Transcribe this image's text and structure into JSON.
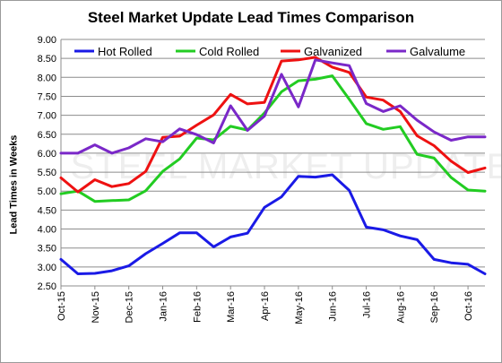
{
  "chart_data": {
    "type": "line",
    "title": "Steel Market Update Lead Times Comparison",
    "ylabel": "Lead Times in Weeks",
    "xlabel": "",
    "watermark": "STEEL MARKET UPDATE",
    "ylim": [
      2.5,
      9.0
    ],
    "yticks": [
      "2.50",
      "3.00",
      "3.50",
      "4.00",
      "4.50",
      "5.00",
      "5.50",
      "6.00",
      "6.50",
      "7.00",
      "7.50",
      "8.00",
      "8.50",
      "9.00"
    ],
    "xtick_labels": [
      "Oct-15",
      "Nov-15",
      "Dec-15",
      "Jan-16",
      "Feb-16",
      "Mar-16",
      "Apr-16",
      "May-16",
      "Jun-16",
      "Jul-16",
      "Aug-16",
      "Sep-16",
      "Oct-16"
    ],
    "grid": true,
    "legend_position": "top",
    "series": [
      {
        "name": "Hot Rolled",
        "color": "#1a1ae6",
        "values": [
          3.2,
          2.82,
          2.83,
          2.9,
          3.03,
          3.35,
          3.62,
          3.9,
          3.9,
          3.53,
          3.79,
          3.89,
          4.57,
          4.85,
          5.39,
          5.37,
          5.43,
          5.02,
          4.05,
          3.98,
          3.82,
          3.72,
          3.2,
          3.11,
          3.07,
          2.82
        ]
      },
      {
        "name": "Cold Rolled",
        "color": "#22cc22",
        "values": [
          4.93,
          5.0,
          4.73,
          4.75,
          4.77,
          5.01,
          5.52,
          5.85,
          6.4,
          6.35,
          6.71,
          6.61,
          7.06,
          7.62,
          7.91,
          7.95,
          8.04,
          7.42,
          6.78,
          6.63,
          6.7,
          5.97,
          5.87,
          5.36,
          5.03,
          5.0
        ]
      },
      {
        "name": "Galvanized",
        "color": "#ee1111",
        "values": [
          5.35,
          4.98,
          5.3,
          5.12,
          5.2,
          5.52,
          6.42,
          6.45,
          6.74,
          7.01,
          7.55,
          7.3,
          7.34,
          8.43,
          8.46,
          8.53,
          8.27,
          8.13,
          7.48,
          7.4,
          7.1,
          6.46,
          6.2,
          5.79,
          5.49,
          5.61
        ]
      },
      {
        "name": "Galvalume",
        "color": "#7a28c8",
        "values": [
          6.0,
          6.0,
          6.22,
          6.0,
          6.14,
          6.38,
          6.3,
          6.64,
          6.49,
          6.27,
          7.25,
          6.6,
          6.98,
          8.08,
          7.22,
          8.46,
          8.38,
          8.31,
          7.31,
          7.1,
          7.25,
          6.87,
          6.56,
          6.34,
          6.43,
          6.43
        ]
      }
    ]
  }
}
